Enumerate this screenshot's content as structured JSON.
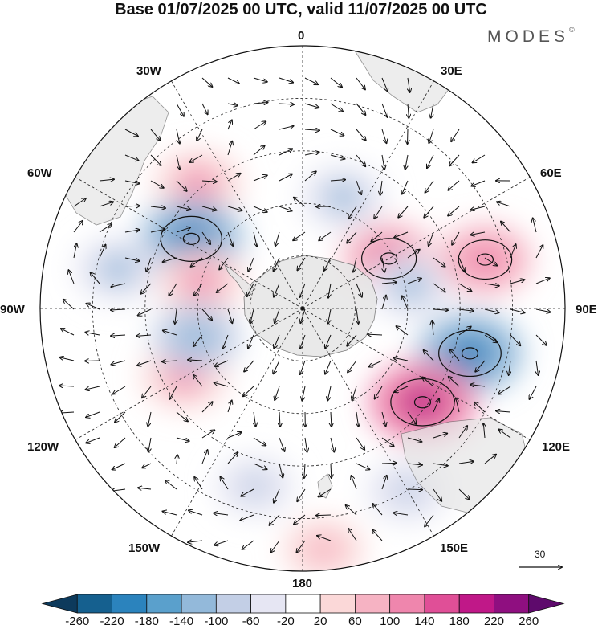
{
  "title": "Base 01/07/2025 00 UTC, valid 11/07/2025 00 UTC",
  "brand": {
    "name": "MODES",
    "mark": "©"
  },
  "longitude_labels": [
    {
      "id": "0",
      "text": "0"
    },
    {
      "id": "30E",
      "text": "30E"
    },
    {
      "id": "60E",
      "text": "60E"
    },
    {
      "id": "90E",
      "text": "90E"
    },
    {
      "id": "120E",
      "text": "120E"
    },
    {
      "id": "150E",
      "text": "150E"
    },
    {
      "id": "180",
      "text": "180"
    },
    {
      "id": "150W",
      "text": "150W"
    },
    {
      "id": "120W",
      "text": "120W"
    },
    {
      "id": "90W",
      "text": "90W"
    },
    {
      "id": "60W",
      "text": "60W"
    },
    {
      "id": "30W",
      "text": "30W"
    }
  ],
  "vector_scale": {
    "label": "30"
  },
  "colorbar": {
    "labels": [
      "-260",
      "-220",
      "-180",
      "-140",
      "-100",
      "-60",
      "-20",
      "20",
      "60",
      "100",
      "140",
      "180",
      "220",
      "260"
    ],
    "colors": [
      "#0d3a5c",
      "#15608f",
      "#2b83bd",
      "#5aa0cc",
      "#93b9da",
      "#c3cfe6",
      "#e6e6f3",
      "#ffffff",
      "#fbd8d8",
      "#f6b3c3",
      "#ef86ad",
      "#e04f97",
      "#c01888",
      "#8f0f80",
      "#5e0a6c"
    ]
  },
  "anomalies": [
    {
      "lon": -40,
      "lat_r": 0.62,
      "value": 120
    },
    {
      "lon": -58,
      "lat_r": 0.5,
      "value": -200
    },
    {
      "lon": -78,
      "lat_r": 0.72,
      "value": -110
    },
    {
      "lon": -75,
      "lat_r": 0.4,
      "value": 120
    },
    {
      "lon": 20,
      "lat_r": 0.45,
      "value": -100
    },
    {
      "lon": 60,
      "lat_r": 0.38,
      "value": 150
    },
    {
      "lon": 78,
      "lat_r": 0.42,
      "value": -110
    },
    {
      "lon": 75,
      "lat_r": 0.72,
      "value": 140
    },
    {
      "lon": 105,
      "lat_r": 0.66,
      "value": -210
    },
    {
      "lon": 128,
      "lat_r": 0.58,
      "value": 220
    },
    {
      "lon": 150,
      "lat_r": 0.8,
      "value": -90
    },
    {
      "lon": -120,
      "lat_r": 0.52,
      "value": 110
    },
    {
      "lon": -105,
      "lat_r": 0.42,
      "value": -120
    },
    {
      "lon": -165,
      "lat_r": 0.7,
      "value": -70
    },
    {
      "lon": 175,
      "lat_r": 0.92,
      "value": 80
    }
  ]
}
